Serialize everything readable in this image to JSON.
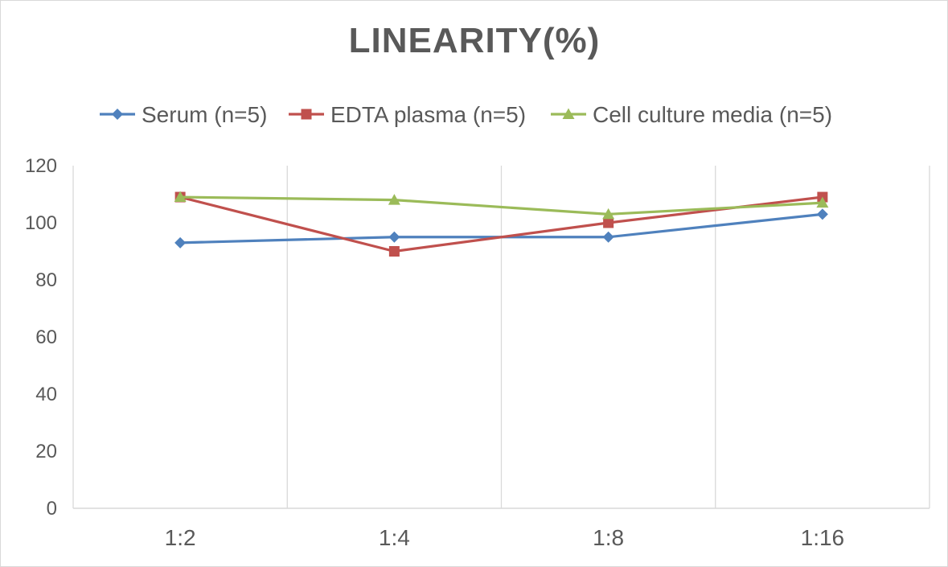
{
  "chart_data": {
    "type": "line",
    "title": "LINEARITY(%)",
    "xlabel": "",
    "ylabel": "",
    "categories": [
      "1:2",
      "1:4",
      "1:8",
      "1:16"
    ],
    "ylim": [
      0,
      120
    ],
    "yticks": [
      0,
      20,
      40,
      60,
      80,
      100,
      120
    ],
    "grid": "vertical",
    "legend": "top",
    "series": [
      {
        "name": "Serum (n=5)",
        "values": [
          93,
          95,
          95,
          103
        ],
        "color": "#4f81bd",
        "marker": "diamond"
      },
      {
        "name": "EDTA plasma (n=5)",
        "values": [
          109,
          90,
          100,
          109
        ],
        "color": "#c0504d",
        "marker": "square"
      },
      {
        "name": "Cell culture media (n=5)",
        "values": [
          109,
          108,
          103,
          107
        ],
        "color": "#9bbb59",
        "marker": "triangle"
      }
    ]
  }
}
